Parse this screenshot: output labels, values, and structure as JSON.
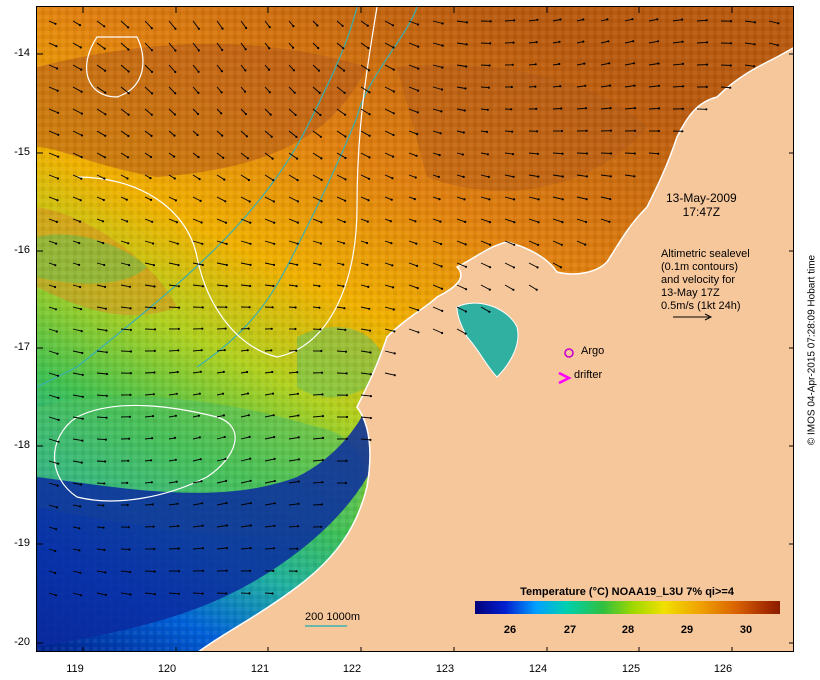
{
  "map": {
    "lat_ticks": [
      "-14",
      "-15",
      "-16",
      "-17",
      "-18",
      "-19",
      "-20"
    ],
    "lon_ticks": [
      "119",
      "120",
      "121",
      "122",
      "123",
      "124",
      "125",
      "126"
    ],
    "date_line1": "13-May-2009",
    "date_line2": "17:47Z",
    "altimetry_lines": [
      "Altimetric sealevel",
      "(0.1m contours)",
      "and velocity for",
      "13-May 17Z",
      "0.5m/s (1kt 24h)"
    ],
    "argo_label": "Argo",
    "drifter_label": "drifter",
    "scale_label": "200  1000m",
    "credit": "© IMOS 04-Apr-2015 07:28:09 Hobart time",
    "colorbar_title": "Temperature (°C) NOAA19_L3U 7% qi>=4",
    "colorbar_ticks": [
      "26",
      "27",
      "28",
      "29",
      "30"
    ],
    "colors": {
      "land": "#f7c79c",
      "argo_marker": "#cc00cc",
      "drifter_marker": "#ff00ff",
      "isobath": "#3ab0b0",
      "sealevel_contour": "#ffffff"
    }
  }
}
